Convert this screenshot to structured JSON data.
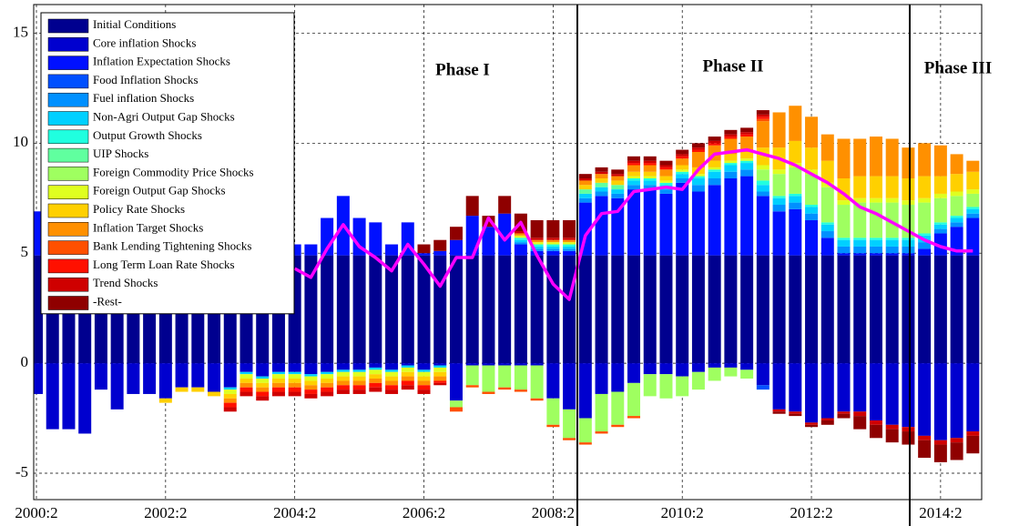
{
  "chart_data": {
    "type": "bar",
    "stacked": true,
    "categories": [
      "2000:2",
      null,
      null,
      null,
      null,
      null,
      null,
      null,
      "2002:2",
      null,
      null,
      null,
      null,
      null,
      null,
      null,
      "2004:2",
      null,
      null,
      null,
      null,
      null,
      null,
      null,
      "2006:2",
      null,
      null,
      null,
      null,
      null,
      null,
      null,
      "2008:2",
      null,
      null,
      null,
      null,
      null,
      null,
      null,
      "2010:2",
      null,
      null,
      null,
      null,
      null,
      null,
      null,
      "2012:2",
      null,
      null,
      null,
      null,
      null,
      null,
      null,
      "2014:2",
      null,
      null
    ],
    "series": [
      {
        "name": "Initial Conditions",
        "color": "#00008f",
        "values": [
          4.9,
          4.9,
          4.9,
          4.9,
          4.9,
          4.9,
          4.9,
          4.9,
          4.9,
          4.9,
          4.9,
          4.9,
          4.9,
          4.9,
          4.9,
          4.9,
          4.9,
          4.9,
          4.9,
          4.9,
          4.9,
          4.9,
          4.9,
          4.9,
          4.9,
          4.9,
          4.9,
          4.9,
          4.9,
          4.9,
          4.9,
          4.9,
          4.9,
          4.9,
          4.9,
          4.9,
          4.9,
          4.9,
          4.9,
          4.9,
          4.9,
          4.9,
          4.9,
          4.9,
          4.9,
          4.9,
          4.9,
          4.9,
          4.9,
          4.9,
          4.9,
          4.9,
          4.9,
          4.9,
          4.9,
          4.9,
          4.9,
          4.9,
          4.9
        ]
      },
      {
        "name": "Core inflation Shocks",
        "color": "#0000cf",
        "values": [
          -1.4,
          -3.0,
          -3.0,
          -3.2,
          -1.2,
          -2.1,
          -1.4,
          -1.4,
          -1.6,
          -1.1,
          -1.1,
          -1.3,
          -1.1,
          -0.4,
          -0.6,
          -0.4,
          -0.4,
          -0.5,
          -0.4,
          -0.3,
          -0.3,
          -0.2,
          -0.3,
          -0.1,
          -0.3,
          -0.1,
          -1.7,
          -0.1,
          -0.1,
          -0.1,
          -0.1,
          -0.1,
          -1.6,
          -2.1,
          -2.5,
          -1.4,
          -1.3,
          -0.9,
          -0.5,
          -0.5,
          -0.6,
          -0.4,
          -0.2,
          -0.2,
          -0.3,
          -1.0,
          -2.1,
          -2.2,
          -2.7,
          -2.5,
          -2.2,
          -2.2,
          -2.6,
          -2.8,
          -2.9,
          -3.3,
          -3.5,
          -3.4,
          -3.1
        ]
      },
      {
        "name": "Inflation Expectation Shocks",
        "color": "#0010ff",
        "values": [
          2.0,
          0.5,
          0.3,
          0.4,
          0.6,
          0.7,
          0.5,
          0.4,
          0.6,
          0.7,
          0.5,
          0.6,
          0.7,
          0.9,
          0.6,
          0.7,
          0.5,
          0.5,
          1.7,
          2.7,
          1.7,
          1.5,
          0.5,
          1.5,
          0.1,
          0.2,
          0.7,
          1.8,
          1.3,
          1.9,
          0.5,
          0.2,
          0.2,
          0.2,
          2.4,
          2.7,
          2.6,
          3.0,
          3.0,
          2.8,
          3.3,
          2.9,
          3.2,
          3.5,
          3.6,
          2.7,
          2.0,
          2.1,
          1.6,
          0.8,
          0.1,
          0.1,
          0.1,
          0.1,
          0.1,
          0.3,
          1.0,
          1.3,
          1.7
        ]
      },
      {
        "name": "Food Inflation Shocks",
        "color": "#0050ff",
        "values": [
          0,
          0,
          0,
          0,
          0,
          0,
          0,
          0,
          0,
          0,
          0,
          0,
          0,
          0,
          0,
          0,
          0,
          0,
          0,
          0,
          0,
          0,
          0,
          0,
          0,
          0,
          0,
          0,
          0,
          0,
          0,
          0,
          0,
          0,
          0,
          0,
          0,
          0,
          0,
          0,
          0,
          0,
          0,
          0,
          0,
          -0.2,
          0,
          0,
          0,
          0,
          0,
          0,
          0,
          0,
          0,
          0,
          0,
          0,
          0
        ]
      },
      {
        "name": "Fuel inflation Shocks",
        "color": "#0090ff",
        "values": [
          0,
          0,
          0,
          0,
          0,
          0,
          0,
          0,
          0,
          0,
          0,
          0,
          0,
          0,
          0,
          0,
          0,
          0,
          0,
          0,
          0,
          0,
          0,
          0,
          0,
          0,
          0,
          0,
          0,
          0,
          0.1,
          0.1,
          0.1,
          0.1,
          0.2,
          0.2,
          0.2,
          0.2,
          0.2,
          0.2,
          0.2,
          0.3,
          0.3,
          0.3,
          0.3,
          0.2,
          0.3,
          0.3,
          0.3,
          0.3,
          0.3,
          0.3,
          0.3,
          0.3,
          0.3,
          0.3,
          0.2,
          0.2,
          0.2
        ]
      },
      {
        "name": "Non-Agri Output Gap Shocks",
        "color": "#00d0ff",
        "values": [
          0,
          0,
          0,
          0,
          0,
          0,
          0,
          0,
          0,
          0,
          0,
          0,
          -0.1,
          -0.1,
          -0.1,
          -0.1,
          -0.1,
          -0.1,
          -0.1,
          -0.1,
          -0.1,
          -0.1,
          -0.1,
          -0.1,
          -0.1,
          -0.1,
          0,
          0,
          0,
          0,
          0.1,
          0.1,
          0.1,
          0.1,
          0.2,
          0.2,
          0.2,
          0.2,
          0.2,
          0.2,
          0.2,
          0.3,
          0.3,
          0.3,
          0.3,
          0.3,
          0.3,
          0.3,
          0.3,
          0.3,
          0.3,
          0.3,
          0.3,
          0.3,
          0.3,
          0.3,
          0.2,
          0.2,
          0.2
        ]
      },
      {
        "name": "Output Growth Shocks",
        "color": "#20ffdf",
        "values": [
          0,
          0,
          0,
          0,
          0,
          0,
          0,
          0,
          0,
          0,
          0,
          0,
          0,
          0,
          0,
          0,
          0,
          0,
          0,
          0,
          0,
          0,
          0,
          0,
          0,
          0,
          0,
          0,
          0,
          0,
          0.1,
          0.1,
          0.1,
          0.1,
          0,
          0,
          0,
          0.1,
          0.1,
          0.1,
          0.1,
          0.1,
          0.1,
          0.1,
          0.1,
          0.2,
          0.1,
          0.1,
          0.1,
          0.1,
          0.1,
          0.1,
          0.1,
          0.1,
          0.1,
          0.1,
          0.1,
          0.1,
          0.1
        ]
      },
      {
        "name": "UIP Shocks",
        "color": "#60ff9f",
        "values": [
          0,
          0,
          0,
          0,
          0,
          0,
          0,
          0,
          0,
          0,
          0,
          0,
          0,
          0,
          0,
          0,
          0,
          0,
          0,
          0,
          0,
          0,
          0,
          0,
          0,
          0,
          0,
          0,
          0,
          0,
          0,
          0,
          0,
          0,
          0.2,
          0.2,
          0.2,
          0,
          0,
          0,
          0,
          0,
          0,
          0,
          0,
          0,
          0,
          0,
          0,
          0,
          0,
          0,
          0,
          0,
          0,
          0,
          0,
          0,
          0
        ]
      },
      {
        "name": "Foreign Commodity Price Shocks",
        "color": "#9fff60",
        "values": [
          0,
          0,
          0,
          0,
          0,
          0,
          0,
          0,
          0,
          0,
          0,
          0,
          0,
          0,
          0,
          0,
          0,
          0,
          0,
          0,
          0,
          0,
          0,
          0,
          0,
          0,
          -0.3,
          -0.9,
          -1.2,
          -1.0,
          -1.1,
          -1.5,
          -1.2,
          -1.3,
          -1.1,
          -1.7,
          -1.5,
          -1.5,
          -1.0,
          -1.1,
          -0.9,
          -0.8,
          -0.6,
          -0.4,
          -0.4,
          0.5,
          1.0,
          1.2,
          1.4,
          1.6,
          1.5,
          1.6,
          1.6,
          1.6,
          1.5,
          1.4,
          1.1,
          0.9,
          0.6
        ]
      },
      {
        "name": "Foreign Output Gap Shocks",
        "color": "#dfff20",
        "values": [
          0,
          0,
          0,
          0,
          0,
          0,
          0,
          0,
          0,
          0,
          0,
          0,
          -0.2,
          -0.2,
          -0.2,
          -0.2,
          -0.2,
          -0.2,
          -0.2,
          -0.2,
          -0.2,
          -0.2,
          -0.2,
          -0.2,
          -0.2,
          -0.2,
          0,
          0,
          0,
          0,
          0.1,
          0.1,
          0.1,
          0.1,
          0,
          0,
          0,
          0.1,
          0.1,
          0.1,
          0.1,
          0.1,
          0.1,
          0.1,
          0.1,
          0.2,
          0.2,
          0.2,
          0.2,
          0.2,
          0.2,
          0.2,
          0.2,
          0.2,
          0.2,
          0.2,
          0.2,
          0.2,
          0.2
        ]
      },
      {
        "name": "Policy Rate Shocks",
        "color": "#ffd000",
        "values": [
          0,
          0,
          0,
          0,
          0,
          0,
          0,
          0,
          -0.2,
          -0.2,
          -0.2,
          -0.2,
          -0.2,
          -0.2,
          -0.2,
          -0.2,
          -0.2,
          -0.2,
          -0.2,
          -0.2,
          -0.2,
          -0.2,
          -0.2,
          -0.2,
          -0.2,
          -0.2,
          0,
          0,
          0,
          0,
          0,
          0,
          0,
          0,
          0.2,
          0.2,
          0.2,
          0.2,
          0.2,
          0.2,
          0.2,
          0.3,
          0.3,
          0.3,
          0.3,
          0.8,
          1.0,
          1.0,
          1.0,
          1.0,
          1.0,
          1.0,
          1.0,
          1.0,
          1.0,
          1.0,
          0.8,
          0.8,
          0.8
        ]
      },
      {
        "name": "Inflation Target Shocks",
        "color": "#ff9000",
        "values": [
          0,
          0,
          0,
          0,
          0,
          0,
          0,
          0,
          0,
          0,
          0,
          0,
          -0.2,
          -0.2,
          -0.2,
          -0.2,
          -0.2,
          -0.2,
          -0.2,
          -0.2,
          -0.2,
          -0.2,
          -0.2,
          -0.2,
          -0.2,
          -0.2,
          0,
          0,
          0,
          0,
          0.1,
          0.1,
          0.1,
          0.1,
          0.2,
          0.2,
          0.2,
          0.3,
          0.3,
          0.3,
          0.3,
          0.7,
          0.7,
          0.7,
          0.7,
          1.2,
          1.6,
          1.6,
          1.4,
          1.2,
          1.8,
          1.7,
          1.8,
          1.7,
          1.4,
          1.5,
          1.4,
          0.9,
          0.5
        ]
      },
      {
        "name": "Bank Lending Tightening Shocks",
        "color": "#ff5000",
        "values": [
          0,
          0,
          0,
          0,
          0,
          0,
          0,
          0,
          0,
          0,
          0,
          0,
          0,
          0,
          0,
          0,
          0,
          0,
          0,
          0,
          0,
          0,
          0,
          0,
          0,
          0,
          -0.2,
          -0.1,
          -0.1,
          -0.1,
          -0.1,
          -0.1,
          -0.1,
          -0.1,
          -0.1,
          -0.1,
          -0.1,
          -0.1,
          0,
          0,
          0,
          0,
          0,
          0,
          0,
          0.1,
          0,
          0,
          0,
          0,
          0,
          0,
          0,
          0,
          0,
          0,
          0,
          0,
          0
        ]
      },
      {
        "name": "Long Term Loan Rate Shocks",
        "color": "#ff1000",
        "values": [
          0,
          0,
          0,
          0,
          0,
          0,
          0,
          0,
          0,
          0,
          0,
          0,
          -0.2,
          -0.2,
          -0.2,
          -0.2,
          -0.2,
          -0.2,
          -0.2,
          -0.2,
          -0.2,
          -0.2,
          -0.2,
          -0.2,
          -0.2,
          -0.1,
          0,
          0,
          0,
          0,
          0,
          0,
          0,
          0,
          0,
          0,
          0,
          0.1,
          0.1,
          0.1,
          0.1,
          0.1,
          0.1,
          0.1,
          0.1,
          0.1,
          0,
          0,
          0,
          0,
          0,
          0,
          0,
          0,
          0,
          0,
          0,
          0,
          0
        ]
      },
      {
        "name": "Trend Shocks",
        "color": "#cf0000",
        "values": [
          0,
          0,
          0,
          0,
          0,
          0,
          0,
          0,
          0,
          0,
          0,
          0,
          -0.2,
          -0.2,
          -0.2,
          -0.2,
          -0.2,
          -0.2,
          -0.2,
          -0.2,
          -0.2,
          -0.2,
          -0.2,
          -0.2,
          -0.2,
          -0.1,
          0,
          0,
          0,
          0,
          0.1,
          0.1,
          0.1,
          0.1,
          0.1,
          0.1,
          0.1,
          0.1,
          0.1,
          0.1,
          0.1,
          0.1,
          0.1,
          0.1,
          0.1,
          0.1,
          -0.1,
          -0.1,
          -0.1,
          -0.1,
          -0.1,
          -0.2,
          -0.2,
          -0.2,
          -0.2,
          -0.2,
          -0.2,
          -0.2,
          -0.2
        ]
      },
      {
        "name": "-Rest-",
        "color": "#8f0000",
        "values": [
          0,
          0,
          0,
          0,
          0,
          0,
          0,
          0,
          0,
          0,
          0,
          0,
          0,
          0,
          0,
          0,
          0,
          0,
          0,
          0,
          0,
          0,
          0,
          0,
          0.4,
          0.5,
          0.6,
          0.9,
          0.5,
          0.8,
          0.8,
          0.8,
          0.8,
          0.8,
          0.2,
          0.2,
          0.2,
          0.2,
          0.2,
          0.2,
          0.2,
          0.2,
          0.2,
          0.2,
          0.2,
          0.2,
          -0.1,
          -0.1,
          -0.1,
          -0.2,
          -0.2,
          -0.6,
          -0.6,
          -0.6,
          -0.6,
          -0.8,
          -0.8,
          -0.8,
          -0.8
        ]
      }
    ],
    "line": {
      "color": "#ff00ff",
      "values": [
        null,
        null,
        null,
        null,
        null,
        null,
        null,
        null,
        null,
        null,
        null,
        null,
        null,
        null,
        null,
        null,
        4.3,
        3.9,
        5.2,
        6.3,
        5.3,
        4.8,
        4.2,
        5.4,
        4.5,
        3.5,
        4.8,
        4.8,
        6.6,
        5.6,
        6.4,
        4.9,
        3.6,
        2.9,
        5.8,
        6.8,
        6.9,
        7.8,
        7.9,
        8.0,
        7.9,
        8.8,
        9.5,
        9.6,
        9.7,
        9.5,
        9.3,
        9.0,
        8.6,
        8.2,
        7.7,
        7.1,
        6.8,
        6.4,
        6.0,
        5.6,
        5.3,
        5.1,
        5.1
      ]
    },
    "ylim": [
      -6.2,
      16.3
    ],
    "yticks": [
      -5,
      0,
      5,
      10,
      15
    ],
    "grid": true,
    "legend": "upper left",
    "annotations": [
      "Phase I",
      "Phase II",
      "Phase III"
    ]
  }
}
